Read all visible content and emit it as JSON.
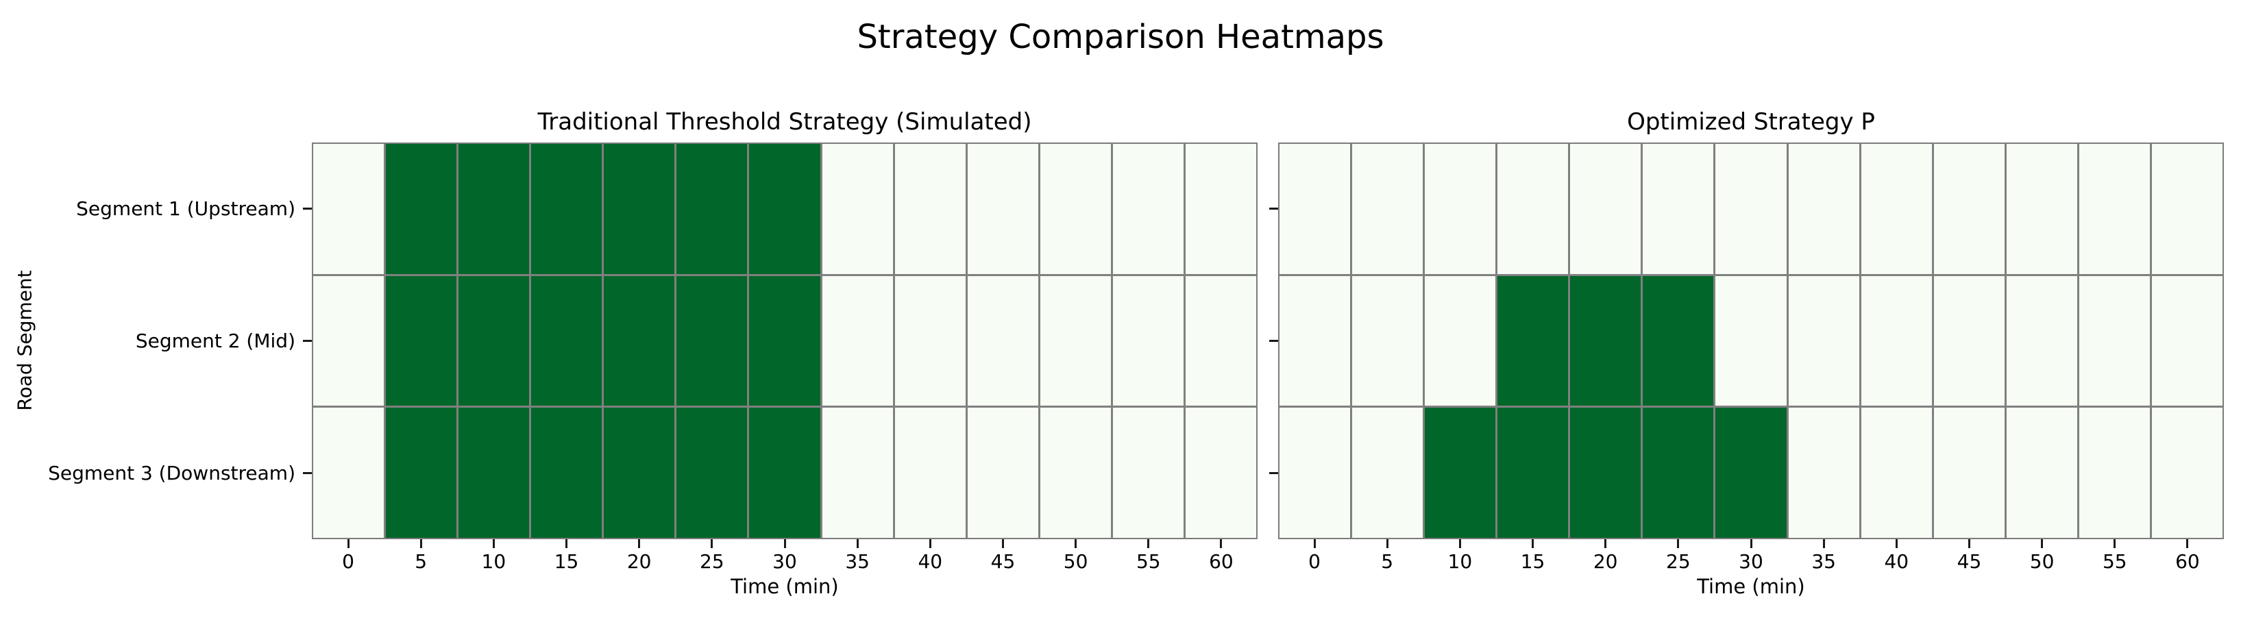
{
  "figure": {
    "suptitle": "Strategy Comparison Heatmaps"
  },
  "colors": {
    "active": "#006629",
    "inactive": "#f7fcf5",
    "gridline": "#808080",
    "spine": "#7c7c7c"
  },
  "chart_data": [
    {
      "type": "heatmap",
      "title": "Traditional Threshold Strategy (Simulated)",
      "xlabel": "Time (min)",
      "ylabel": "Road Segment",
      "x_ticks": [
        0,
        5,
        10,
        15,
        20,
        25,
        30,
        35,
        40,
        45,
        50,
        55,
        60
      ],
      "x_range": [
        -2.5,
        62.5
      ],
      "y_categories": [
        "Segment 1 (Upstream)",
        "Segment 2 (Mid)",
        "Segment 3 (Downstream)"
      ],
      "show_y_tick_labels": true,
      "legend": "none",
      "grid": true,
      "values": [
        [
          0,
          1,
          1,
          1,
          1,
          1,
          1,
          0,
          0,
          0,
          0,
          0,
          0
        ],
        [
          0,
          1,
          1,
          1,
          1,
          1,
          1,
          0,
          0,
          0,
          0,
          0,
          0
        ],
        [
          0,
          1,
          1,
          1,
          1,
          1,
          1,
          0,
          0,
          0,
          0,
          0,
          0
        ]
      ],
      "active_times_per_segment": {
        "Segment 1 (Upstream)": [
          5,
          10,
          15,
          20,
          25,
          30
        ],
        "Segment 2 (Mid)": [
          5,
          10,
          15,
          20,
          25,
          30
        ],
        "Segment 3 (Downstream)": [
          5,
          10,
          15,
          20,
          25,
          30
        ]
      }
    },
    {
      "type": "heatmap",
      "title": "Optimized Strategy P",
      "xlabel": "Time (min)",
      "ylabel": "",
      "x_ticks": [
        0,
        5,
        10,
        15,
        20,
        25,
        30,
        35,
        40,
        45,
        50,
        55,
        60
      ],
      "x_range": [
        -2.5,
        62.5
      ],
      "y_categories": [
        "Segment 1 (Upstream)",
        "Segment 2 (Mid)",
        "Segment 3 (Downstream)"
      ],
      "show_y_tick_labels": false,
      "legend": "none",
      "grid": true,
      "values": [
        [
          0,
          0,
          0,
          0,
          0,
          0,
          0,
          0,
          0,
          0,
          0,
          0,
          0
        ],
        [
          0,
          0,
          0,
          1,
          1,
          1,
          0,
          0,
          0,
          0,
          0,
          0,
          0
        ],
        [
          0,
          0,
          1,
          1,
          1,
          1,
          1,
          0,
          0,
          0,
          0,
          0,
          0
        ]
      ],
      "active_times_per_segment": {
        "Segment 1 (Upstream)": [],
        "Segment 2 (Mid)": [
          15,
          20,
          25
        ],
        "Segment 3 (Downstream)": [
          10,
          15,
          20,
          25,
          30
        ]
      }
    }
  ]
}
